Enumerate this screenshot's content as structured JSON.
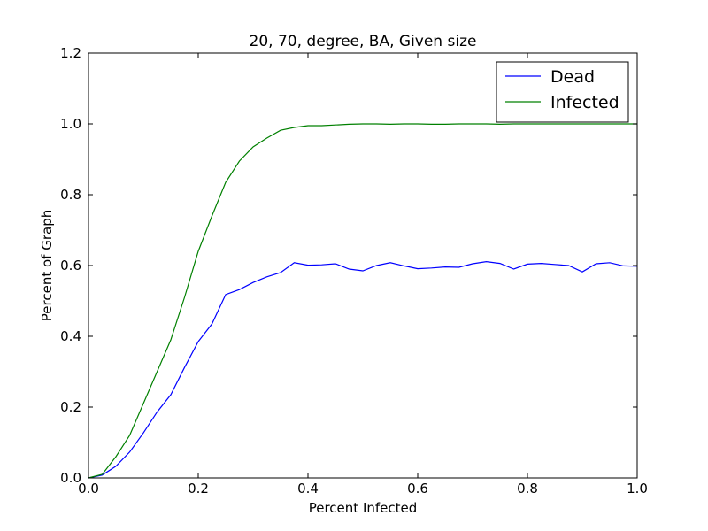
{
  "chart_data": {
    "type": "line",
    "title": "20, 70, degree, BA, Given size",
    "xlabel": "Percent Infected",
    "ylabel": "Percent of Graph",
    "xlim": [
      0.0,
      1.0
    ],
    "ylim": [
      0.0,
      1.2
    ],
    "xticks": [
      "0.0",
      "0.2",
      "0.4",
      "0.6",
      "0.8",
      "1.0"
    ],
    "yticks": [
      "0.0",
      "0.2",
      "0.4",
      "0.6",
      "0.8",
      "1.0",
      "1.2"
    ],
    "grid": false,
    "legend": "top-right",
    "x": [
      0.0,
      0.025,
      0.05,
      0.075,
      0.1,
      0.125,
      0.15,
      0.175,
      0.2,
      0.225,
      0.25,
      0.275,
      0.3,
      0.325,
      0.35,
      0.375,
      0.4,
      0.425,
      0.45,
      0.475,
      0.5,
      0.525,
      0.55,
      0.575,
      0.6,
      0.625,
      0.65,
      0.675,
      0.7,
      0.725,
      0.75,
      0.775,
      0.8,
      0.825,
      0.85,
      0.875,
      0.9,
      0.925,
      0.95,
      0.975,
      1.0
    ],
    "series": [
      {
        "name": "Dead",
        "color": "#0000ff",
        "values": [
          0.0,
          0.008,
          0.033,
          0.073,
          0.127,
          0.186,
          0.235,
          0.312,
          0.385,
          0.435,
          0.518,
          0.532,
          0.552,
          0.568,
          0.58,
          0.608,
          0.601,
          0.602,
          0.605,
          0.59,
          0.585,
          0.6,
          0.608,
          0.599,
          0.591,
          0.593,
          0.596,
          0.595,
          0.605,
          0.611,
          0.606,
          0.59,
          0.604,
          0.606,
          0.603,
          0.6,
          0.582,
          0.605,
          0.608,
          0.599,
          0.598
        ]
      },
      {
        "name": "Infected",
        "color": "#008000",
        "values": [
          0.0,
          0.01,
          0.06,
          0.12,
          0.21,
          0.3,
          0.39,
          0.51,
          0.64,
          0.74,
          0.835,
          0.895,
          0.935,
          0.96,
          0.982,
          0.99,
          0.995,
          0.995,
          0.997,
          0.999,
          1.0,
          1.0,
          0.999,
          1.0,
          1.0,
          0.999,
          0.999,
          1.0,
          1.0,
          1.0,
          0.999,
          1.0,
          1.0,
          1.0,
          1.0,
          1.0,
          1.0,
          1.0,
          1.0,
          1.0,
          1.0
        ]
      }
    ]
  }
}
